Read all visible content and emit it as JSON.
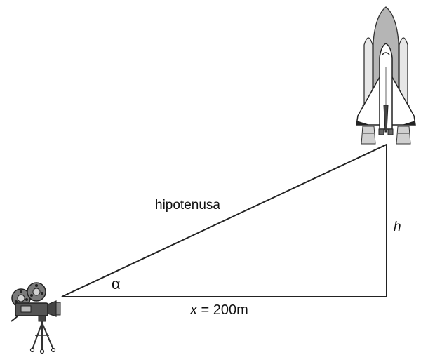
{
  "diagram": {
    "hypotenuse_label": "hipotenusa",
    "height_label": "h",
    "angle_label": "α",
    "base_variable": "x",
    "base_value": " = 200m"
  },
  "illustrations": {
    "observer": "film-camera-on-tripod",
    "object": "space-shuttle-with-boosters"
  }
}
